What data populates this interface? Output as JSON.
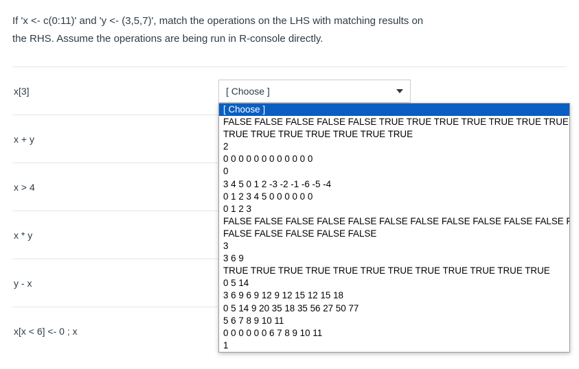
{
  "question": {
    "text_line1": "If 'x <- c(0:11)' and 'y <- (3,5,7)', match the operations on the LHS with matching results on",
    "text_line2": "the RHS. Assume the operations are being run in R-console directly."
  },
  "select_placeholder": "[ Choose ]",
  "rows": [
    {
      "lhs": "x[3]"
    },
    {
      "lhs": "x + y"
    },
    {
      "lhs": "x > 4"
    },
    {
      "lhs": "x * y"
    },
    {
      "lhs": "y - x"
    },
    {
      "lhs": "x[x < 6] <- 0 ; x"
    }
  ],
  "dropdown_open_on_row": 0,
  "dropdown": {
    "selected_index": 0,
    "options": [
      "[ Choose ]",
      "FALSE FALSE FALSE FALSE FALSE TRUE TRUE TRUE TRUE TRUE TRUE TRUE",
      "TRUE TRUE TRUE TRUE TRUE TRUE TRUE",
      "2",
      "0 0 0 0 0 0 0 0 0 0 0 0",
      "0",
      "3 4 5 0 1 2 -3 -2 -1 -6 -5 -4",
      "0 1 2 3 4 5 0 0 0 0 0 0",
      "0 1 2 3",
      "FALSE FALSE FALSE FALSE FALSE FALSE FALSE FALSE FALSE FALSE FALSE FALSE",
      "FALSE FALSE FALSE FALSE FALSE",
      "3",
      "3 6 9",
      "TRUE TRUE TRUE TRUE TRUE TRUE TRUE TRUE TRUE TRUE TRUE TRUE",
      "0 5 14",
      "3 6 9 6 9 12 9 12 15 12 15 18",
      "0 5 14 9 20 35 18 35 56 27 50 77",
      "5 6 7 8 9 10 11",
      "0 0 0 0 0 0 6 7 8 9 10 11",
      "1"
    ]
  },
  "colors": {
    "text": "#2d3b45",
    "border": "#e6e6e6",
    "select_border": "#c7cdd1",
    "dropdown_border": "#9c9c9c",
    "selected_bg": "#0a5ec2",
    "selected_fg": "#ffffff"
  }
}
